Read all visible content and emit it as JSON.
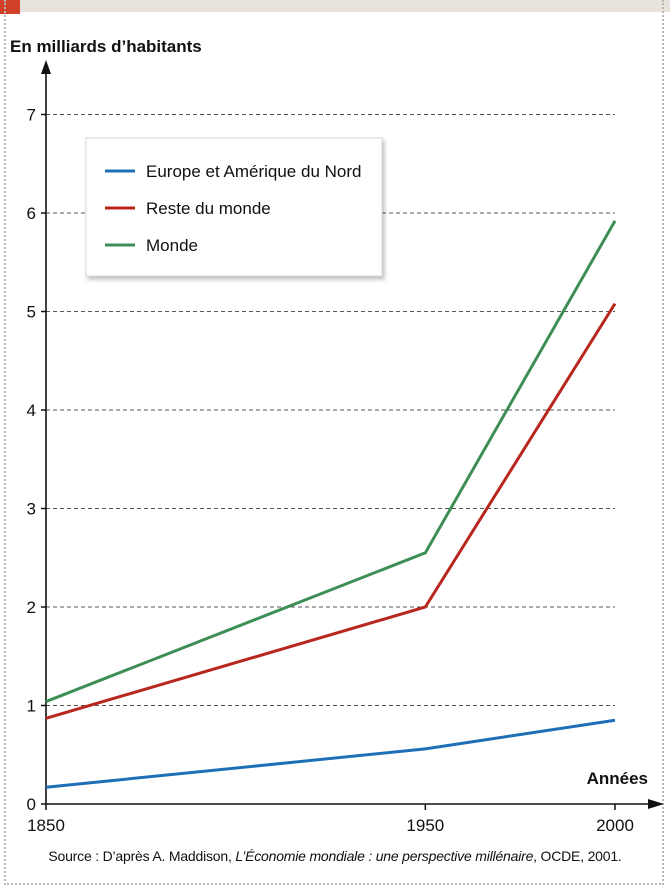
{
  "chart_data": {
    "type": "line",
    "ylabel": "En milliards d’habitants",
    "xlabel": "Années",
    "x": [
      1850,
      1950,
      2000
    ],
    "x_ticks": [
      "1850",
      "1950",
      "2000"
    ],
    "y_ticks": [
      "0",
      "1",
      "2",
      "3",
      "4",
      "5",
      "6",
      "7"
    ],
    "ylim": [
      0,
      7
    ],
    "grid": "horizontal dashed",
    "legend_position": "top-left",
    "series": [
      {
        "name": "Europe et Amérique du Nord",
        "color": "#1f6fb8",
        "values": [
          0.17,
          0.56,
          0.85
        ]
      },
      {
        "name": "Reste du monde",
        "color": "#b8261d",
        "values": [
          0.87,
          2.0,
          5.08
        ]
      },
      {
        "name": "Monde",
        "color": "#3d8f57",
        "values": [
          1.04,
          2.55,
          5.92
        ]
      }
    ]
  },
  "source": {
    "prefix": "Source : D’après A. Maddison, ",
    "work": "L’Économie mondiale : une perspective millénaire",
    "suffix": ", OCDE, 2001."
  }
}
